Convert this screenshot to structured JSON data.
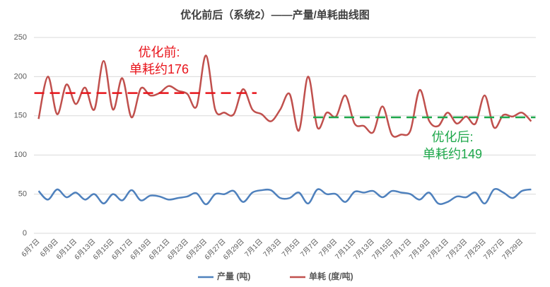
{
  "chart_data": {
    "type": "line",
    "title": "优化前后（系统2）——产量/单耗曲线图",
    "categories": [
      "6月7日",
      null,
      "6月9日",
      null,
      "6月11日",
      null,
      "6月13日",
      null,
      "6月15日",
      null,
      "6月17日",
      null,
      "6月19日",
      null,
      "6月21日",
      null,
      "6月23日",
      null,
      "6月25日",
      null,
      "6月27日",
      null,
      "6月29日",
      null,
      "7月1日",
      null,
      "7月3日",
      null,
      "7月5日",
      null,
      "7月7日",
      null,
      "7月9日",
      null,
      "7月11日",
      null,
      "7月13日",
      null,
      "7月15日",
      null,
      "7月17日",
      null,
      "7月19日",
      null,
      "7月21日",
      null,
      "7月23日",
      null,
      "7月25日",
      null,
      "7月27日",
      null,
      "7月29日",
      null
    ],
    "series": [
      {
        "name": "产量 (吨)",
        "color": "#4f81bd",
        "values": [
          54,
          43,
          56,
          46,
          52,
          43,
          50,
          38,
          50,
          42,
          55,
          42,
          48,
          47,
          43,
          45,
          47,
          51,
          37,
          50,
          50,
          54,
          40,
          52,
          55,
          55,
          45,
          45,
          52,
          38,
          56,
          50,
          50,
          40,
          53,
          52,
          54,
          46,
          54,
          52,
          50,
          43,
          52,
          38,
          40,
          47,
          46,
          52,
          38,
          56,
          52,
          45,
          54,
          56
        ]
      },
      {
        "name": "单耗 (度/吨)",
        "color": "#c0504d",
        "values": [
          146,
          200,
          152,
          190,
          165,
          186,
          158,
          220,
          158,
          198,
          148,
          185,
          176,
          179,
          188,
          182,
          178,
          162,
          227,
          158,
          154,
          152,
          184,
          158,
          152,
          143,
          158,
          178,
          131,
          200,
          135,
          154,
          149,
          176,
          140,
          137,
          129,
          162,
          126,
          126,
          131,
          183,
          144,
          137,
          154,
          140,
          149,
          140,
          176,
          135,
          151,
          149,
          154,
          143
        ]
      }
    ],
    "ylim": [
      0,
      250
    ],
    "yticks": [
      0,
      50,
      100,
      150,
      200,
      250
    ],
    "grid": true,
    "reference_lines": [
      {
        "value": 179,
        "x_start": 0,
        "x_end": 23,
        "color": "#e8141b",
        "label": [
          "优化前:",
          "单耗约176"
        ]
      },
      {
        "value": 148,
        "x_start": 30,
        "x_end": 53,
        "color": "#1ea84b",
        "label": [
          "优化后:",
          "单耗约149"
        ]
      }
    ]
  }
}
